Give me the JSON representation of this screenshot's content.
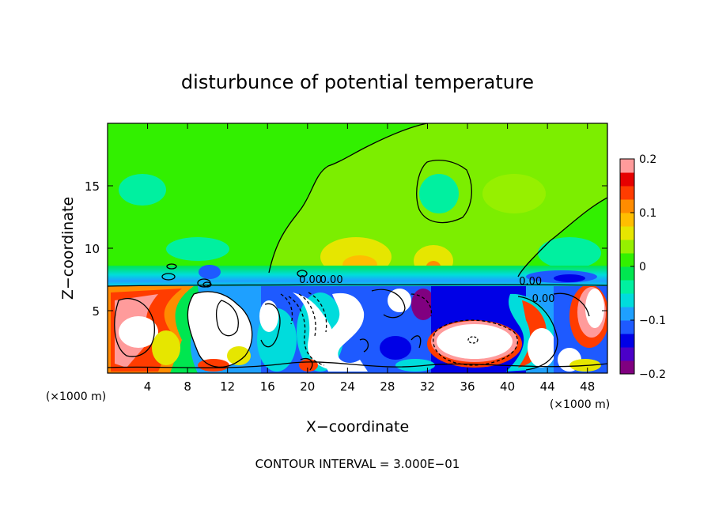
{
  "chart_data": {
    "type": "heatmap",
    "title": "disturbunce of potential temperature",
    "xlabel": "X−coordinate",
    "ylabel": "Z−coordinate",
    "x_unit_label": "(×1000 m)",
    "x_unit_label_right": "(×1000 m)",
    "footer": "CONTOUR INTERVAL = 3.000E−01",
    "xlim": [
      0,
      50
    ],
    "ylim": [
      0,
      20
    ],
    "x_ticks": [
      "4",
      "8",
      "12",
      "16",
      "20",
      "24",
      "28",
      "32",
      "36",
      "40",
      "44",
      "48"
    ],
    "x_tick_values": [
      4,
      8,
      12,
      16,
      20,
      24,
      28,
      32,
      36,
      40,
      44,
      48
    ],
    "y_ticks": [
      "5",
      "10",
      "15"
    ],
    "y_tick_values": [
      5,
      10,
      15
    ],
    "colorbar": {
      "range": [
        -0.2,
        0.2
      ],
      "tick_labels": [
        "0.2",
        "0.1",
        "0",
        "−0.1",
        "−0.2"
      ],
      "tick_values": [
        0.2,
        0.1,
        0,
        -0.1,
        -0.2
      ],
      "colors": [
        "#800080",
        "#4b00c8",
        "#0000e6",
        "#1e5aff",
        "#1ea0ff",
        "#00dcdc",
        "#00f0a0",
        "#00e650",
        "#32f000",
        "#96f000",
        "#e6e600",
        "#ffbe00",
        "#ff8c00",
        "#ff3c00",
        "#e60000",
        "#ff9b9b"
      ]
    },
    "contour_labels": [
      {
        "text": "0.00",
        "x": 20.3,
        "z": 7.2
      },
      {
        "text": "0.00",
        "x": 22.4,
        "z": 7.2
      },
      {
        "text": "0.00",
        "x": 42.3,
        "z": 7.1
      },
      {
        "text": "0.00",
        "x": 43.6,
        "z": 5.7
      }
    ]
  }
}
